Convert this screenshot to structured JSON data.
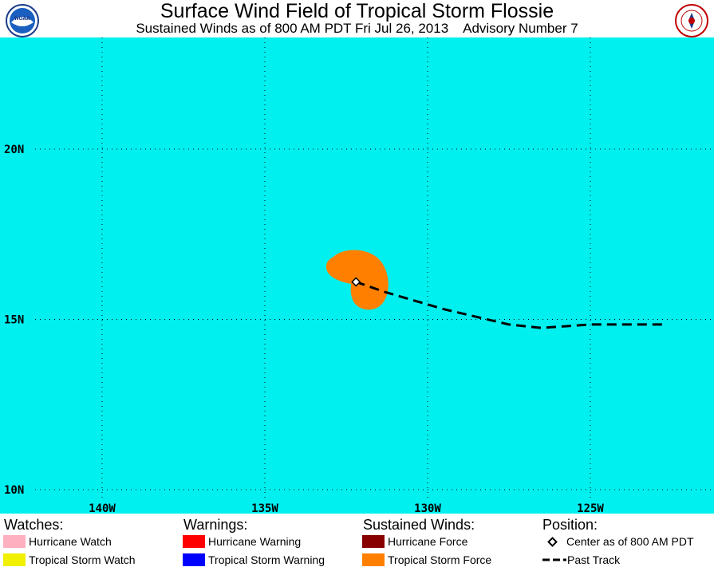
{
  "header": {
    "title": "Surface Wind Field of Tropical Storm Flossie",
    "subtitle": "Sustained Winds as of 800 AM PDT Fri Jul 26, 2013    Advisory Number 7",
    "left_logo_text": "NOAA",
    "right_logo_text": "NATIONAL WEATHER SERVICE"
  },
  "map": {
    "background_color": "#00f0f0",
    "lat_labels": [
      "20N",
      "15N",
      "10N"
    ],
    "lon_labels": [
      "140W",
      "135W",
      "130W",
      "125W"
    ],
    "storm_center": {
      "lat": 16.1,
      "lon": -132.2
    },
    "past_track": [
      {
        "lat": 14.85,
        "lon": -122.8
      },
      {
        "lat": 14.85,
        "lon": -125.0
      },
      {
        "lat": 14.75,
        "lon": -126.5
      },
      {
        "lat": 14.85,
        "lon": -127.5
      },
      {
        "lat": 15.3,
        "lon": -129.5
      },
      {
        "lat": 15.8,
        "lon": -131.3
      },
      {
        "lat": 16.1,
        "lon": -132.2
      }
    ],
    "tropical_storm_force_color": "#ff8000"
  },
  "legend": {
    "watches": {
      "heading": "Watches:",
      "items": [
        {
          "label": "Hurricane Watch",
          "color": "#ffb0c0"
        },
        {
          "label": "Tropical Storm Watch",
          "color": "#f0f000"
        }
      ]
    },
    "warnings": {
      "heading": "Warnings:",
      "items": [
        {
          "label": "Hurricane Warning",
          "color": "#ff0000"
        },
        {
          "label": "Tropical Storm Warning",
          "color": "#0000ff"
        }
      ]
    },
    "winds": {
      "heading": "Sustained Winds:",
      "items": [
        {
          "label": "Hurricane Force",
          "color": "#880000"
        },
        {
          "label": "Tropical Storm Force",
          "color": "#ff8000"
        }
      ]
    },
    "position": {
      "heading": "Position:",
      "center_label": "Center as of 800 AM PDT",
      "track_label": "Past Track"
    }
  }
}
